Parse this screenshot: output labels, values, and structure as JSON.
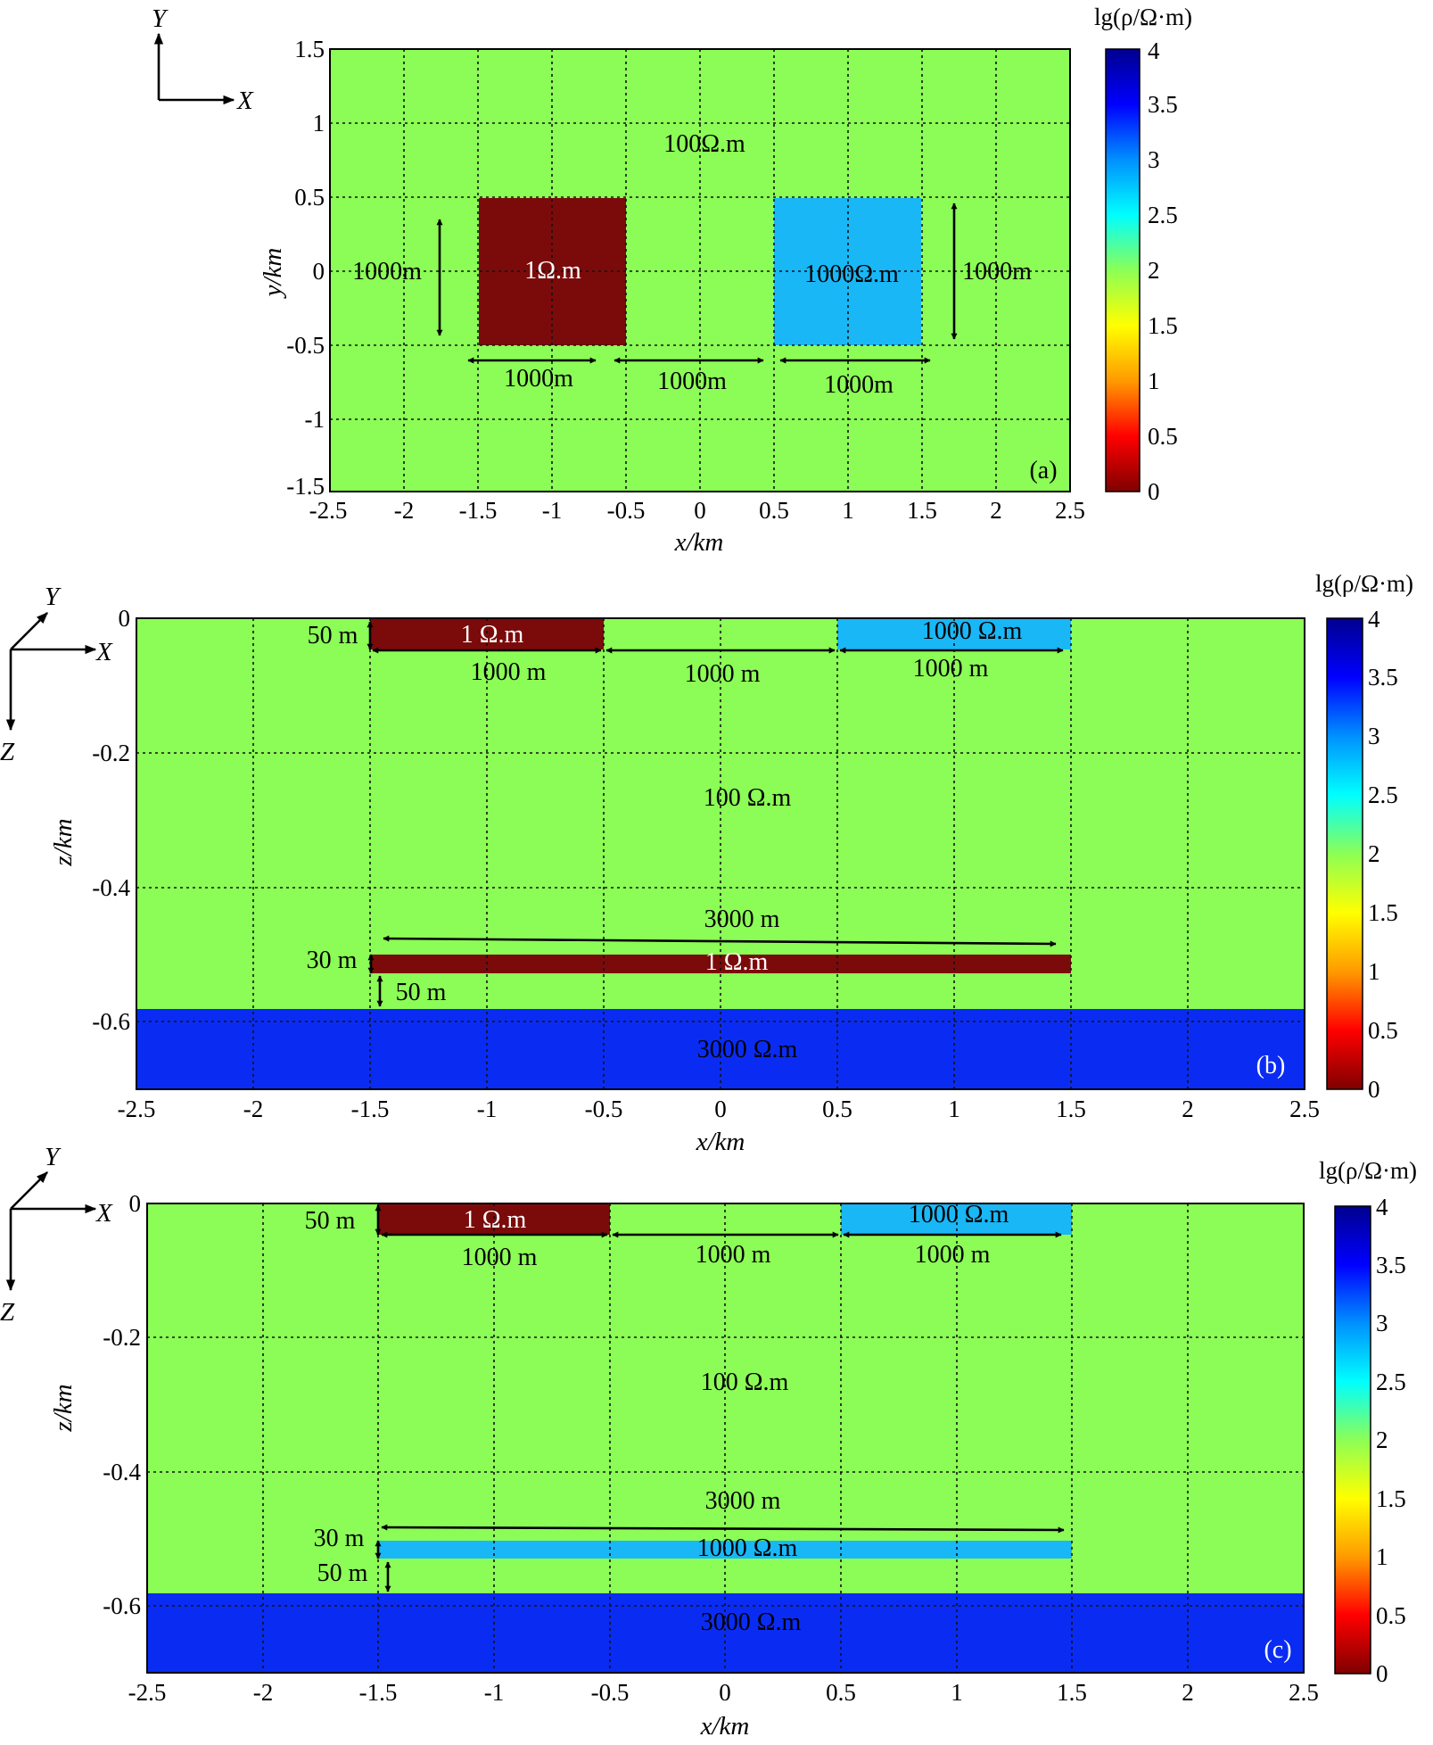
{
  "figure": {
    "colorbar_title": "lg(ρ/Ω·m)",
    "colorbar_ticks": [
      "0",
      "0.5",
      "1",
      "1.5",
      "2",
      "2.5",
      "3",
      "3.5",
      "4"
    ],
    "colormap": [
      "#7f0000",
      "#ff0000",
      "#ff9a00",
      "#ffff00",
      "#8cff55",
      "#00ffff",
      "#0090ff",
      "#0000ff",
      "#00008f"
    ]
  },
  "panels": [
    {
      "id": "a",
      "label": "(a)",
      "xlabel": "x/km",
      "ylabel": "y/km",
      "xticks": [
        "-2.5",
        "-2",
        "-1.5",
        "-1",
        "-0.5",
        "0",
        "0.5",
        "1",
        "1.5",
        "2",
        "2.5"
      ],
      "yticks": [
        "1.5",
        "1",
        "0.5",
        "0",
        "-0.5",
        "-1",
        "-1.5"
      ],
      "axes_symbol": [
        "Y",
        "X"
      ],
      "background": {
        "text": "100Ω.m",
        "color": "#8cfc56"
      },
      "blocks": [
        {
          "text": "1Ω.m",
          "color": "#7b0b0b"
        },
        {
          "text": "1000Ω.m",
          "color": "#19b7f6"
        }
      ],
      "dims": [
        "1000m",
        "1000m",
        "1000m",
        "1000m",
        "1000m"
      ]
    },
    {
      "id": "b",
      "label": "(b)",
      "xlabel": "x/km",
      "ylabel": "z/km",
      "xticks": [
        "-2.5",
        "-2",
        "-1.5",
        "-1",
        "-0.5",
        "0",
        "0.5",
        "1",
        "1.5",
        "2",
        "2.5"
      ],
      "yticks": [
        "0",
        "-0.2",
        "-0.4",
        "-0.6"
      ],
      "axes_symbol": [
        "Y",
        "X",
        "Z"
      ],
      "background": {
        "text": "100  Ω.m",
        "color": "#8cfc56"
      },
      "blocks": [
        {
          "text": "1 Ω.m",
          "color": "#7b0b0b"
        },
        {
          "text": "1000 Ω.m",
          "color": "#19b7f6"
        },
        {
          "text": "1 Ω.m",
          "color": "#7b0b0b"
        },
        {
          "text": "3000  Ω.m",
          "color": "#0a2cf2"
        }
      ],
      "dims": [
        "50 m",
        "1000 m",
        "1000 m",
        "1000 m",
        "3000 m",
        "30 m",
        "50 m"
      ]
    },
    {
      "id": "c",
      "label": "(c)",
      "xlabel": "x/km",
      "ylabel": "z/km",
      "xticks": [
        "-2.5",
        "-2",
        "-1.5",
        "-1",
        "-0.5",
        "0",
        "0.5",
        "1",
        "1.5",
        "2",
        "2.5"
      ],
      "yticks": [
        "0",
        "-0.2",
        "-0.4",
        "-0.6"
      ],
      "axes_symbol": [
        "Y",
        "X",
        "Z"
      ],
      "background": {
        "text": "100  Ω.m",
        "color": "#8cfc56"
      },
      "blocks": [
        {
          "text": "1 Ω.m",
          "color": "#7b0b0b"
        },
        {
          "text": "1000 Ω.m",
          "color": "#19b7f6"
        },
        {
          "text": "1000 Ω.m",
          "color": "#19b7f6"
        },
        {
          "text": "3000  Ω.m",
          "color": "#0a2cf2"
        }
      ],
      "dims": [
        "50 m",
        "1000 m",
        "1000 m",
        "1000 m",
        "3000 m",
        "30 m",
        "50 m"
      ]
    }
  ]
}
